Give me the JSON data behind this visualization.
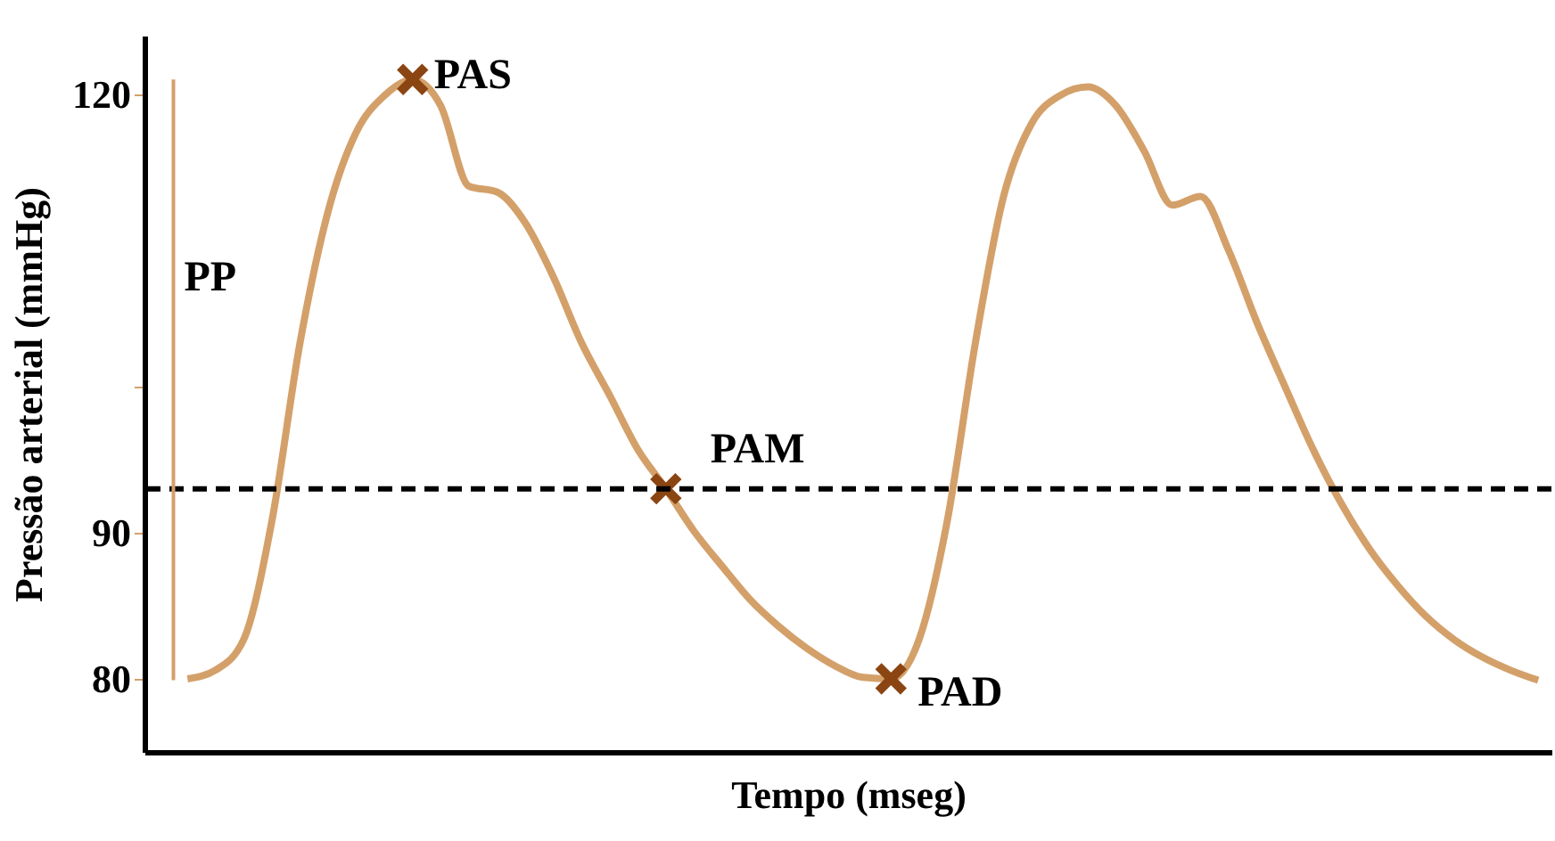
{
  "chart_data": {
    "type": "line",
    "xlabel": "Tempo (mseg)",
    "ylabel": "Pressão arterial  (mmHg)",
    "categories": [
      null,
      null,
      null,
      null,
      null,
      null,
      null,
      null,
      null,
      null,
      null,
      null,
      null,
      null,
      null,
      null,
      null,
      null,
      null,
      null,
      null,
      null,
      null,
      null,
      null,
      null,
      null,
      null,
      null,
      null,
      null,
      null,
      null,
      null,
      null,
      null,
      null,
      null,
      null,
      null,
      null,
      null,
      null,
      null,
      null,
      null,
      null,
      null,
      null
    ],
    "series": [
      {
        "type": "line",
        "color": "#d4a06a",
        "values": [
          80,
          80.6,
          82.7,
          90.8,
          103,
          112,
          117.4,
          119.9,
          121,
          119.2,
          113.7,
          113.3,
          111.2,
          107.5,
          103,
          99.4,
          95.7,
          93,
          90.1,
          87.7,
          85.4,
          83.6,
          82.1,
          80.9,
          80.1,
          80,
          82.7,
          90.8,
          103,
          113,
          118,
          119.9,
          120.5,
          119.2,
          116.1,
          112.4,
          113,
          109.3,
          104.4,
          100,
          95.7,
          92,
          88.9,
          86.4,
          84.3,
          82.7,
          81.5,
          80.6,
          79.9
        ]
      },
      {
        "type": "scatter",
        "color": "#8b4513",
        "marker": "cross",
        "values": [
          null,
          null,
          null,
          null,
          null,
          null,
          null,
          null,
          121,
          null,
          null,
          null,
          null,
          null,
          null,
          null,
          null,
          93,
          null,
          null,
          null,
          null,
          null,
          null,
          null,
          80,
          null,
          null,
          null,
          null,
          null,
          null,
          null,
          null,
          null,
          null,
          null,
          null,
          null,
          null,
          null,
          null,
          null,
          null,
          null,
          null,
          null,
          null,
          null
        ]
      }
    ],
    "ylim": [
      75,
      124
    ],
    "yticks": [
      80,
      90,
      {
        "value": 100,
        "label": null
      },
      120
    ],
    "ref_lines": [
      {
        "axis": "y",
        "value": 93,
        "color": "#000000",
        "line_style": "dashed"
      }
    ],
    "annotations": [
      "PAS",
      "PAM",
      "PAD",
      "PP"
    ],
    "grid": false
  }
}
